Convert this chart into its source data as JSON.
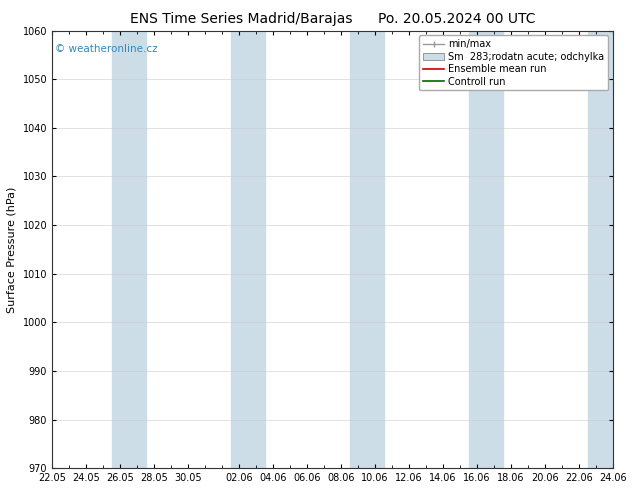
{
  "title_left": "ENS Time Series Madrid/Barajas",
  "title_right": "Po. 20.05.2024 00 UTC",
  "ylabel": "Surface Pressure (hPa)",
  "ylim": [
    970,
    1060
  ],
  "yticks": [
    970,
    980,
    990,
    1000,
    1010,
    1020,
    1030,
    1040,
    1050,
    1060
  ],
  "xtick_labels": [
    "22.05",
    "24.05",
    "26.05",
    "28.05",
    "30.05",
    "02.06",
    "04.06",
    "06.06",
    "08.06",
    "10.06",
    "12.06",
    "14.06",
    "16.06",
    "18.06",
    "20.06",
    "22.06",
    "24.06"
  ],
  "watermark": "© weatheronline.cz",
  "legend_entries": [
    "min/max",
    "Sm  283;rodatn acute; odchylka",
    "Ensemble mean run",
    "Controll run"
  ],
  "background_color": "#ffffff",
  "axes_bg": "#ffffff",
  "title_fontsize": 10,
  "label_fontsize": 8,
  "tick_fontsize": 7,
  "watermark_color": "#3388bb",
  "legend_fontsize": 7,
  "ensemble_mean_color": "#cc0000",
  "control_run_color": "#006600",
  "minmax_color": "#aaaaaa",
  "shade_color": "#ccdde8",
  "band_positions_start": [
    3.5,
    10.5,
    16.5,
    24.5,
    30.5
  ],
  "band_positions_end": [
    5.5,
    12.5,
    18.5,
    26.5,
    33.0
  ],
  "xlim_start": 0,
  "xlim_end": 33
}
